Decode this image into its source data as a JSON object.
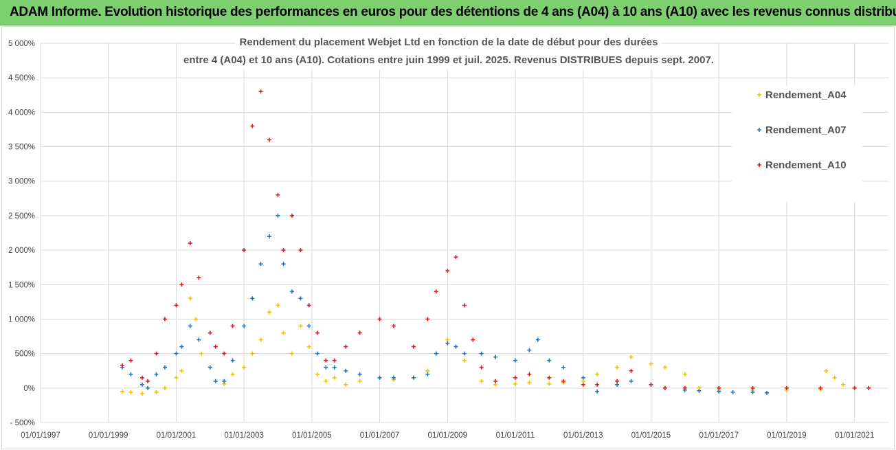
{
  "banner": {
    "title": "ADAM Informe. Evolution historique des performances en euros pour des détentions de 4 ans (A04) à 10 ans (A10) avec les revenus connus distribués"
  },
  "colors": {
    "banner_bg": "#7dcf6f",
    "A04": "#f5c000",
    "A07": "#1f77c4",
    "A10": "#e01b1b",
    "grid": "#d9d9d9"
  },
  "chart_data": {
    "type": "scatter",
    "title": "Rendement du placement Webjet Ltd en fonction de la date de début pour des durées",
    "subtitle": "entre 4 (A04) et 10 ans (A10). Cotations entre juin 1999 et juil. 2025. Revenus DISTRIBUES depuis sept. 2007.",
    "marker": "+",
    "x_ticks": [
      "01/01/1997",
      "01/01/1999",
      "01/01/2001",
      "01/01/2003",
      "01/01/2005",
      "01/01/2007",
      "01/01/2009",
      "01/01/2011",
      "01/01/2013",
      "01/01/2015",
      "01/01/2017",
      "01/01/2019",
      "01/01/2021"
    ],
    "xlim": [
      "1997-01-01",
      "2022-01-01"
    ],
    "y_ticks": [
      "- 500%",
      "0%",
      "500%",
      "1 000%",
      "1 500%",
      "2 000%",
      "2 500%",
      "3 000%",
      "3 500%",
      "4 000%",
      "4 500%",
      "5 000%"
    ],
    "ylim": [
      -500,
      5000
    ],
    "legend_position": "top-right",
    "grid": true,
    "series": [
      {
        "name": "Rendement_A04",
        "points": [
          [
            "1999-06",
            -50
          ],
          [
            "1999-09",
            -60
          ],
          [
            "2000-01",
            -80
          ],
          [
            "2000-06",
            -60
          ],
          [
            "2000-09",
            0
          ],
          [
            "2001-01",
            150
          ],
          [
            "2001-03",
            250
          ],
          [
            "2001-06",
            1300
          ],
          [
            "2001-08",
            1000
          ],
          [
            "2001-10",
            500
          ],
          [
            "2002-01",
            300
          ],
          [
            "2002-03",
            100
          ],
          [
            "2002-06",
            60
          ],
          [
            "2002-09",
            200
          ],
          [
            "2003-01",
            300
          ],
          [
            "2003-04",
            500
          ],
          [
            "2003-07",
            700
          ],
          [
            "2003-10",
            1100
          ],
          [
            "2004-01",
            1200
          ],
          [
            "2004-03",
            800
          ],
          [
            "2004-06",
            500
          ],
          [
            "2004-09",
            900
          ],
          [
            "2004-12",
            600
          ],
          [
            "2005-03",
            200
          ],
          [
            "2005-06",
            100
          ],
          [
            "2005-09",
            150
          ],
          [
            "2006-01",
            50
          ],
          [
            "2006-06",
            100
          ],
          [
            "2007-01",
            150
          ],
          [
            "2007-06",
            120
          ],
          [
            "2008-01",
            150
          ],
          [
            "2008-06",
            250
          ],
          [
            "2008-09",
            500
          ],
          [
            "2009-01",
            700
          ],
          [
            "2009-04",
            600
          ],
          [
            "2009-07",
            400
          ],
          [
            "2010-01",
            100
          ],
          [
            "2010-06",
            50
          ],
          [
            "2011-01",
            60
          ],
          [
            "2011-06",
            80
          ],
          [
            "2012-01",
            60
          ],
          [
            "2012-06",
            80
          ],
          [
            "2013-01",
            100
          ],
          [
            "2013-06",
            200
          ],
          [
            "2014-01",
            300
          ],
          [
            "2014-06",
            450
          ],
          [
            "2015-01",
            350
          ],
          [
            "2015-06",
            300
          ],
          [
            "2016-01",
            200
          ],
          [
            "2016-06",
            0
          ],
          [
            "2017-01",
            -30
          ],
          [
            "2018-01",
            -30
          ],
          [
            "2019-01",
            -30
          ],
          [
            "2020-01",
            -20
          ],
          [
            "2020-03",
            250
          ],
          [
            "2020-06",
            150
          ],
          [
            "2020-09",
            50
          ],
          [
            "2021-01",
            0
          ],
          [
            "2021-06",
            0
          ]
        ]
      },
      {
        "name": "Rendement_A07",
        "points": [
          [
            "1999-06",
            300
          ],
          [
            "1999-09",
            200
          ],
          [
            "2000-01",
            50
          ],
          [
            "2000-03",
            0
          ],
          [
            "2000-06",
            200
          ],
          [
            "2000-09",
            300
          ],
          [
            "2001-01",
            500
          ],
          [
            "2001-03",
            600
          ],
          [
            "2001-06",
            900
          ],
          [
            "2001-09",
            700
          ],
          [
            "2002-01",
            300
          ],
          [
            "2002-03",
            100
          ],
          [
            "2002-06",
            100
          ],
          [
            "2002-09",
            400
          ],
          [
            "2003-01",
            900
          ],
          [
            "2003-04",
            1300
          ],
          [
            "2003-07",
            1800
          ],
          [
            "2003-10",
            2200
          ],
          [
            "2004-01",
            2500
          ],
          [
            "2004-03",
            1800
          ],
          [
            "2004-06",
            1400
          ],
          [
            "2004-09",
            1300
          ],
          [
            "2004-12",
            900
          ],
          [
            "2005-03",
            500
          ],
          [
            "2005-06",
            300
          ],
          [
            "2005-09",
            300
          ],
          [
            "2006-01",
            250
          ],
          [
            "2006-06",
            200
          ],
          [
            "2007-01",
            150
          ],
          [
            "2007-06",
            150
          ],
          [
            "2008-01",
            150
          ],
          [
            "2008-06",
            200
          ],
          [
            "2008-09",
            500
          ],
          [
            "2009-01",
            650
          ],
          [
            "2009-04",
            600
          ],
          [
            "2009-07",
            500
          ],
          [
            "2010-01",
            500
          ],
          [
            "2010-06",
            450
          ],
          [
            "2011-01",
            400
          ],
          [
            "2011-06",
            550
          ],
          [
            "2011-09",
            700
          ],
          [
            "2012-01",
            400
          ],
          [
            "2012-06",
            300
          ],
          [
            "2013-01",
            150
          ],
          [
            "2013-06",
            -50
          ],
          [
            "2014-01",
            50
          ],
          [
            "2014-06",
            100
          ],
          [
            "2015-01",
            50
          ],
          [
            "2015-06",
            0
          ],
          [
            "2016-01",
            -30
          ],
          [
            "2016-06",
            -40
          ],
          [
            "2017-01",
            -50
          ],
          [
            "2017-06",
            -60
          ],
          [
            "2018-01",
            -60
          ],
          [
            "2018-06",
            -70
          ]
        ]
      },
      {
        "name": "Rendement_A10",
        "points": [
          [
            "1999-06",
            330
          ],
          [
            "1999-09",
            400
          ],
          [
            "2000-01",
            150
          ],
          [
            "2000-03",
            100
          ],
          [
            "2000-06",
            500
          ],
          [
            "2000-09",
            1000
          ],
          [
            "2001-01",
            1200
          ],
          [
            "2001-03",
            1500
          ],
          [
            "2001-06",
            2100
          ],
          [
            "2001-09",
            1600
          ],
          [
            "2002-01",
            800
          ],
          [
            "2002-03",
            600
          ],
          [
            "2002-06",
            500
          ],
          [
            "2002-09",
            900
          ],
          [
            "2003-01",
            2000
          ],
          [
            "2003-04",
            3800
          ],
          [
            "2003-07",
            4300
          ],
          [
            "2003-10",
            3600
          ],
          [
            "2004-01",
            2800
          ],
          [
            "2004-03",
            2000
          ],
          [
            "2004-06",
            2500
          ],
          [
            "2004-09",
            2000
          ],
          [
            "2004-12",
            1200
          ],
          [
            "2005-03",
            800
          ],
          [
            "2005-06",
            400
          ],
          [
            "2005-09",
            400
          ],
          [
            "2006-01",
            600
          ],
          [
            "2006-06",
            800
          ],
          [
            "2007-01",
            1000
          ],
          [
            "2007-06",
            900
          ],
          [
            "2008-01",
            600
          ],
          [
            "2008-06",
            1000
          ],
          [
            "2008-09",
            1400
          ],
          [
            "2009-01",
            1700
          ],
          [
            "2009-04",
            1900
          ],
          [
            "2009-07",
            1200
          ],
          [
            "2009-10",
            700
          ],
          [
            "2010-01",
            300
          ],
          [
            "2010-06",
            100
          ],
          [
            "2011-01",
            150
          ],
          [
            "2011-06",
            200
          ],
          [
            "2012-01",
            150
          ],
          [
            "2012-06",
            100
          ],
          [
            "2013-01",
            50
          ],
          [
            "2013-06",
            50
          ],
          [
            "2014-01",
            100
          ],
          [
            "2014-06",
            250
          ],
          [
            "2015-01",
            50
          ],
          [
            "2015-06",
            0
          ],
          [
            "2016-01",
            0
          ],
          [
            "2017-01",
            0
          ],
          [
            "2018-01",
            0
          ],
          [
            "2019-01",
            0
          ],
          [
            "2020-01",
            0
          ],
          [
            "2021-01",
            0
          ],
          [
            "2021-06",
            0
          ]
        ]
      }
    ]
  }
}
